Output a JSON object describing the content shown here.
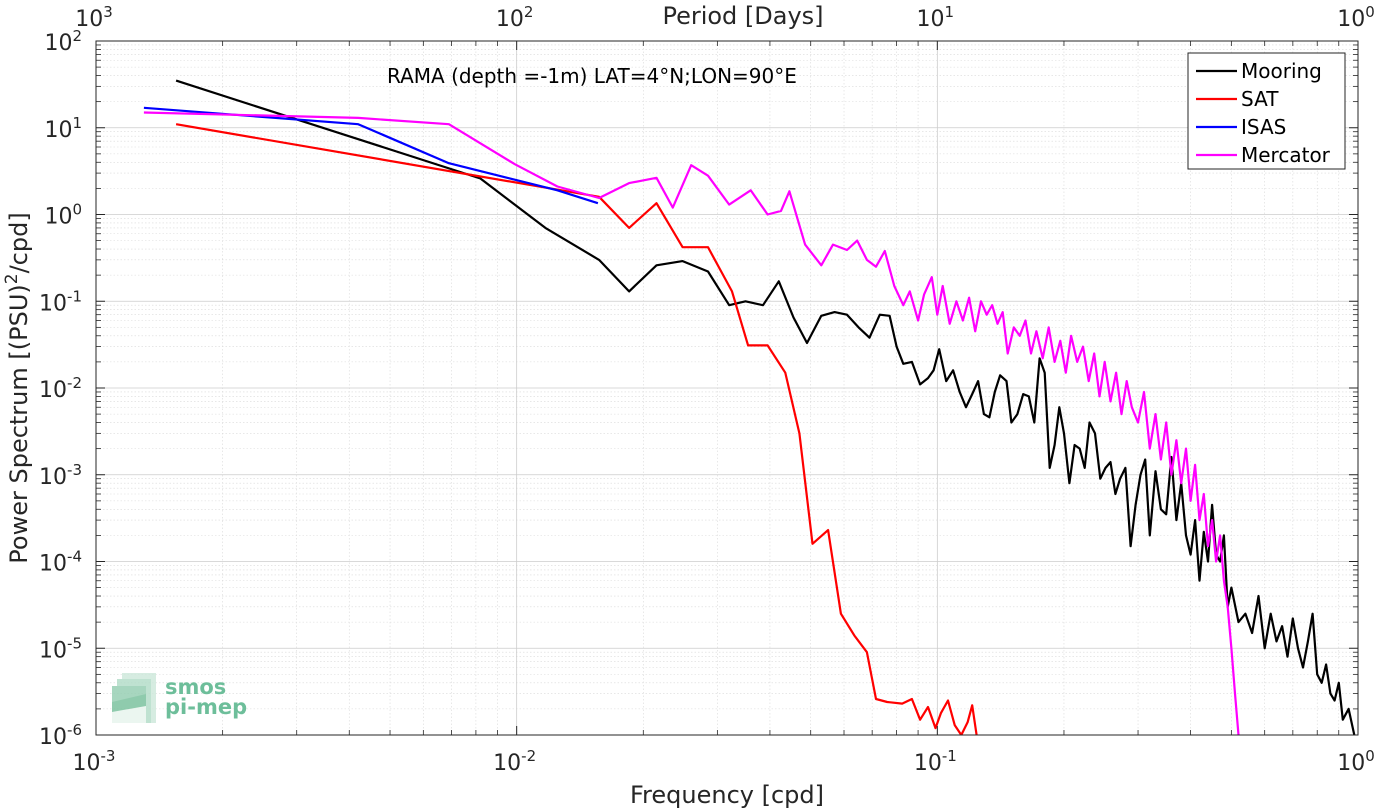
{
  "chart_data": {
    "type": "line",
    "title": "RAMA (depth =-1m) LAT=4°N;LON=90°E",
    "xlabel": "Frequency [cpd]",
    "ylabel": "Power Spectrum [(PSU)^2/cpd]",
    "x2label": "Period [Days]",
    "xscale": "log",
    "yscale": "log",
    "xlim": [
      0.001,
      1
    ],
    "ylim": [
      1e-06,
      100
    ],
    "x2lim": [
      1000,
      1
    ],
    "grid": true,
    "legend_position": "top-right",
    "x_ticks": [
      0.001,
      0.01,
      0.1,
      1
    ],
    "x_tick_labels": [
      {
        "base": "10",
        "exp": "-3"
      },
      {
        "base": "10",
        "exp": "-2"
      },
      {
        "base": "10",
        "exp": "-1"
      },
      {
        "base": "10",
        "exp": "0"
      }
    ],
    "y_ticks": [
      1e-06,
      1e-05,
      0.0001,
      0.001,
      0.01,
      0.1,
      1,
      10,
      100
    ],
    "y_tick_labels": [
      {
        "base": "10",
        "exp": "-6"
      },
      {
        "base": "10",
        "exp": "-5"
      },
      {
        "base": "10",
        "exp": "-4"
      },
      {
        "base": "10",
        "exp": "-3"
      },
      {
        "base": "10",
        "exp": "-2"
      },
      {
        "base": "10",
        "exp": "-1"
      },
      {
        "base": "10",
        "exp": "0"
      },
      {
        "base": "10",
        "exp": "1"
      },
      {
        "base": "10",
        "exp": "2"
      }
    ],
    "x2_ticks": [
      1000,
      100,
      10,
      1
    ],
    "x2_tick_labels": [
      {
        "base": "10",
        "exp": "3"
      },
      {
        "base": "10",
        "exp": "2"
      },
      {
        "base": "10",
        "exp": "1"
      },
      {
        "base": "10",
        "exp": "0"
      }
    ],
    "series": [
      {
        "name": "Mooring",
        "color": "#000000",
        "points": [
          [
            0.00155,
            35
          ],
          [
            0.0082,
            2.6
          ],
          [
            0.0117,
            0.7
          ],
          [
            0.0157,
            0.3
          ],
          [
            0.0185,
            0.13
          ],
          [
            0.0215,
            0.26
          ],
          [
            0.0248,
            0.29
          ],
          [
            0.0285,
            0.22
          ],
          [
            0.032,
            0.09
          ],
          [
            0.035,
            0.1
          ],
          [
            0.0385,
            0.09
          ],
          [
            0.042,
            0.17
          ],
          [
            0.0455,
            0.065
          ],
          [
            0.049,
            0.033
          ],
          [
            0.053,
            0.068
          ],
          [
            0.057,
            0.075
          ],
          [
            0.061,
            0.07
          ],
          [
            0.065,
            0.05
          ],
          [
            0.069,
            0.038
          ],
          [
            0.073,
            0.07
          ],
          [
            0.077,
            0.068
          ],
          [
            0.08,
            0.03
          ],
          [
            0.083,
            0.019
          ],
          [
            0.087,
            0.02
          ],
          [
            0.091,
            0.011
          ],
          [
            0.095,
            0.013
          ],
          [
            0.098,
            0.016
          ],
          [
            0.101,
            0.028
          ],
          [
            0.105,
            0.012
          ],
          [
            0.109,
            0.016
          ],
          [
            0.113,
            0.009
          ],
          [
            0.117,
            0.006
          ],
          [
            0.121,
            0.0085
          ],
          [
            0.125,
            0.012
          ],
          [
            0.129,
            0.005
          ],
          [
            0.133,
            0.0046
          ],
          [
            0.137,
            0.009
          ],
          [
            0.141,
            0.014
          ],
          [
            0.146,
            0.012
          ],
          [
            0.15,
            0.004
          ],
          [
            0.155,
            0.005
          ],
          [
            0.16,
            0.0085
          ],
          [
            0.165,
            0.008
          ],
          [
            0.17,
            0.004
          ],
          [
            0.175,
            0.022
          ],
          [
            0.18,
            0.015
          ],
          [
            0.185,
            0.0012
          ],
          [
            0.19,
            0.0022
          ],
          [
            0.195,
            0.006
          ],
          [
            0.2,
            0.003
          ],
          [
            0.206,
            0.0008
          ],
          [
            0.212,
            0.0022
          ],
          [
            0.218,
            0.002
          ],
          [
            0.224,
            0.0012
          ],
          [
            0.23,
            0.004
          ],
          [
            0.237,
            0.003
          ],
          [
            0.244,
            0.0009
          ],
          [
            0.251,
            0.0012
          ],
          [
            0.258,
            0.0014
          ],
          [
            0.265,
            0.0006
          ],
          [
            0.272,
            0.0009
          ],
          [
            0.28,
            0.0012
          ],
          [
            0.288,
            0.00015
          ],
          [
            0.296,
            0.00045
          ],
          [
            0.304,
            0.001
          ],
          [
            0.312,
            0.0015
          ],
          [
            0.32,
            0.0002
          ],
          [
            0.33,
            0.0011
          ],
          [
            0.34,
            0.0004
          ],
          [
            0.35,
            0.00035
          ],
          [
            0.36,
            0.0016
          ],
          [
            0.37,
            0.0003
          ],
          [
            0.38,
            0.0008
          ],
          [
            0.39,
            0.0002
          ],
          [
            0.4,
            0.00012
          ],
          [
            0.41,
            0.0003
          ],
          [
            0.42,
            6e-05
          ],
          [
            0.43,
            0.00022
          ],
          [
            0.44,
            0.0001
          ],
          [
            0.45,
            0.00045
          ],
          [
            0.46,
            0.00012
          ],
          [
            0.47,
            0.0001
          ],
          [
            0.48,
            0.0002
          ],
          [
            0.49,
            3e-05
          ],
          [
            0.5,
            5e-05
          ],
          [
            0.52,
            2e-05
          ],
          [
            0.54,
            2.5e-05
          ],
          [
            0.56,
            1.5e-05
          ],
          [
            0.58,
            4e-05
          ],
          [
            0.6,
            1e-05
          ],
          [
            0.62,
            2.5e-05
          ],
          [
            0.64,
            1.2e-05
          ],
          [
            0.66,
            1.8e-05
          ],
          [
            0.68,
            8e-06
          ],
          [
            0.7,
            2.2e-05
          ],
          [
            0.72,
            1e-05
          ],
          [
            0.74,
            6e-06
          ],
          [
            0.76,
            1.2e-05
          ],
          [
            0.78,
            2.5e-05
          ],
          [
            0.8,
            5e-06
          ],
          [
            0.82,
            4e-06
          ],
          [
            0.84,
            6.5e-06
          ],
          [
            0.86,
            3e-06
          ],
          [
            0.88,
            2.5e-06
          ],
          [
            0.9,
            4e-06
          ],
          [
            0.92,
            1.5e-06
          ],
          [
            0.95,
            2e-06
          ],
          [
            0.98,
            1e-06
          ]
        ]
      },
      {
        "name": "SAT",
        "color": "#ff0000",
        "points": [
          [
            0.00155,
            11
          ],
          [
            0.0157,
            1.6
          ],
          [
            0.0185,
            0.7
          ],
          [
            0.0215,
            1.35
          ],
          [
            0.0248,
            0.42
          ],
          [
            0.0285,
            0.42
          ],
          [
            0.0325,
            0.13
          ],
          [
            0.0355,
            0.031
          ],
          [
            0.0395,
            0.031
          ],
          [
            0.0435,
            0.015
          ],
          [
            0.047,
            0.003
          ],
          [
            0.0505,
            0.00016
          ],
          [
            0.055,
            0.00023
          ],
          [
            0.059,
            2.5e-05
          ],
          [
            0.0635,
            1.4e-05
          ],
          [
            0.068,
            9e-06
          ],
          [
            0.0715,
            2.6e-06
          ],
          [
            0.076,
            2.4e-06
          ],
          [
            0.0825,
            2.3e-06
          ],
          [
            0.087,
            2.6e-06
          ],
          [
            0.091,
            1.5e-06
          ],
          [
            0.095,
            2.1e-06
          ],
          [
            0.099,
            1.2e-06
          ],
          [
            0.102,
            1.8e-06
          ],
          [
            0.106,
            2.5e-06
          ],
          [
            0.11,
            1.3e-06
          ],
          [
            0.114,
            1e-06
          ],
          [
            0.118,
            1.4e-06
          ],
          [
            0.121,
            2.2e-06
          ],
          [
            0.124,
            1e-06
          ]
        ]
      },
      {
        "name": "ISAS",
        "color": "#0000ff",
        "points": [
          [
            0.0013,
            17
          ],
          [
            0.0042,
            11
          ],
          [
            0.0069,
            3.9
          ],
          [
            0.0125,
            1.9
          ],
          [
            0.0156,
            1.35
          ]
        ]
      },
      {
        "name": "Mercator",
        "color": "#ff00ff",
        "points": [
          [
            0.0013,
            15
          ],
          [
            0.0042,
            13
          ],
          [
            0.0069,
            11
          ],
          [
            0.0099,
            3.8
          ],
          [
            0.0125,
            2.1
          ],
          [
            0.0157,
            1.55
          ],
          [
            0.0185,
            2.3
          ],
          [
            0.0215,
            2.65
          ],
          [
            0.0235,
            1.2
          ],
          [
            0.026,
            3.7
          ],
          [
            0.0285,
            2.8
          ],
          [
            0.032,
            1.3
          ],
          [
            0.036,
            1.9
          ],
          [
            0.0395,
            1.0
          ],
          [
            0.0425,
            1.1
          ],
          [
            0.0445,
            1.85
          ],
          [
            0.0485,
            0.45
          ],
          [
            0.053,
            0.26
          ],
          [
            0.0565,
            0.45
          ],
          [
            0.061,
            0.39
          ],
          [
            0.0645,
            0.5
          ],
          [
            0.068,
            0.3
          ],
          [
            0.0715,
            0.25
          ],
          [
            0.075,
            0.38
          ],
          [
            0.079,
            0.15
          ],
          [
            0.083,
            0.09
          ],
          [
            0.086,
            0.13
          ],
          [
            0.09,
            0.06
          ],
          [
            0.093,
            0.12
          ],
          [
            0.097,
            0.19
          ],
          [
            0.1,
            0.07
          ],
          [
            0.103,
            0.15
          ],
          [
            0.107,
            0.055
          ],
          [
            0.111,
            0.1
          ],
          [
            0.115,
            0.06
          ],
          [
            0.119,
            0.11
          ],
          [
            0.123,
            0.045
          ],
          [
            0.127,
            0.1
          ],
          [
            0.131,
            0.07
          ],
          [
            0.135,
            0.09
          ],
          [
            0.139,
            0.055
          ],
          [
            0.143,
            0.075
          ],
          [
            0.147,
            0.025
          ],
          [
            0.152,
            0.05
          ],
          [
            0.157,
            0.04
          ],
          [
            0.162,
            0.06
          ],
          [
            0.167,
            0.025
          ],
          [
            0.172,
            0.045
          ],
          [
            0.178,
            0.022
          ],
          [
            0.184,
            0.05
          ],
          [
            0.19,
            0.02
          ],
          [
            0.196,
            0.035
          ],
          [
            0.202,
            0.015
          ],
          [
            0.208,
            0.04
          ],
          [
            0.215,
            0.02
          ],
          [
            0.222,
            0.03
          ],
          [
            0.229,
            0.012
          ],
          [
            0.236,
            0.025
          ],
          [
            0.243,
            0.008
          ],
          [
            0.25,
            0.02
          ],
          [
            0.258,
            0.007
          ],
          [
            0.266,
            0.015
          ],
          [
            0.274,
            0.005
          ],
          [
            0.282,
            0.012
          ],
          [
            0.29,
            0.006
          ],
          [
            0.3,
            0.004
          ],
          [
            0.31,
            0.009
          ],
          [
            0.32,
            0.002
          ],
          [
            0.33,
            0.005
          ],
          [
            0.34,
            0.0015
          ],
          [
            0.35,
            0.004
          ],
          [
            0.36,
            0.001
          ],
          [
            0.37,
            0.0025
          ],
          [
            0.38,
            0.0008
          ],
          [
            0.39,
            0.002
          ],
          [
            0.4,
            0.0005
          ],
          [
            0.41,
            0.0013
          ],
          [
            0.42,
            0.0003
          ],
          [
            0.43,
            0.0006
          ],
          [
            0.44,
            0.00015
          ],
          [
            0.45,
            0.0003
          ],
          [
            0.46,
            0.0001
          ],
          [
            0.47,
            0.0002
          ],
          [
            0.48,
            6e-05
          ],
          [
            0.49,
            3e-05
          ],
          [
            0.5,
            1e-05
          ],
          [
            0.51,
            3e-06
          ],
          [
            0.52,
            1e-06
          ]
        ]
      }
    ]
  },
  "logo": {
    "line1": "smos",
    "line2": "pi-mep"
  }
}
